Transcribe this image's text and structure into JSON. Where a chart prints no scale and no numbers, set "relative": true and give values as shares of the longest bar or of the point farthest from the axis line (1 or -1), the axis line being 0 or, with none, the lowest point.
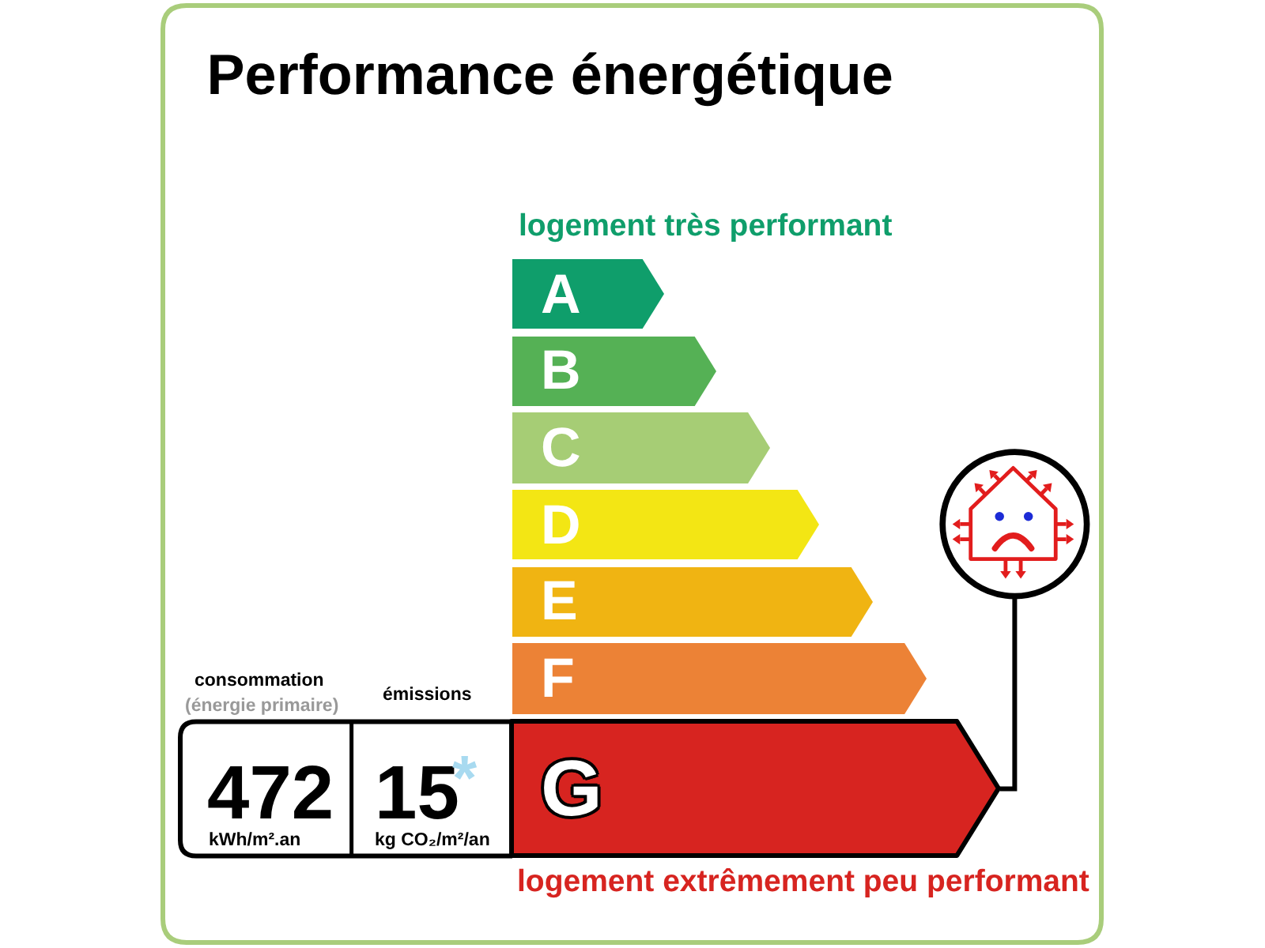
{
  "chart_data": {
    "type": "bar",
    "orientation": "horizontal",
    "relative": true,
    "title": "Performance énergétique",
    "categories": [
      "A",
      "B",
      "C",
      "D",
      "E",
      "F",
      "G"
    ],
    "values": [
      0.31,
      0.42,
      0.53,
      0.63,
      0.74,
      0.85,
      1
    ],
    "colors": [
      "#0f9e6b",
      "#55b155",
      "#a6cd75",
      "#f3e614",
      "#f0b412",
      "#ec8236",
      "#d72420"
    ],
    "annotations": [
      "logement très performant",
      "logement extrêmement peu performant",
      "consommation",
      "(énergie primaire)",
      "émissions",
      "472",
      "kWh/m².an",
      "15",
      "*",
      "kg CO₂/m²/an"
    ]
  }
}
